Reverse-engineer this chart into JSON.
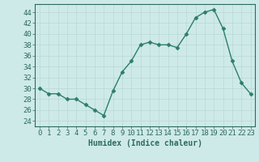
{
  "x": [
    0,
    1,
    2,
    3,
    4,
    5,
    6,
    7,
    8,
    9,
    10,
    11,
    12,
    13,
    14,
    15,
    16,
    17,
    18,
    19,
    20,
    21,
    22,
    23
  ],
  "y": [
    30,
    29,
    29,
    28,
    28,
    27,
    26,
    25,
    29.5,
    33,
    35,
    38,
    38.5,
    38,
    38,
    37.5,
    40,
    43,
    44,
    44.5,
    41,
    35,
    31,
    29
  ],
  "line_color": "#2d7d6f",
  "marker": "D",
  "marker_size": 2.5,
  "bg_color": "#ceeae8",
  "grid_color": "#b8d8d6",
  "xlabel": "Humidex (Indice chaleur)",
  "xlabel_fontsize": 7,
  "yticks": [
    24,
    26,
    28,
    30,
    32,
    34,
    36,
    38,
    40,
    42,
    44
  ],
  "ylim": [
    23.0,
    45.5
  ],
  "xlim": [
    -0.5,
    23.5
  ],
  "tick_fontsize": 6.5,
  "tick_color": "#2d6b60",
  "axis_color": "#2d6b60",
  "linewidth": 1.0
}
